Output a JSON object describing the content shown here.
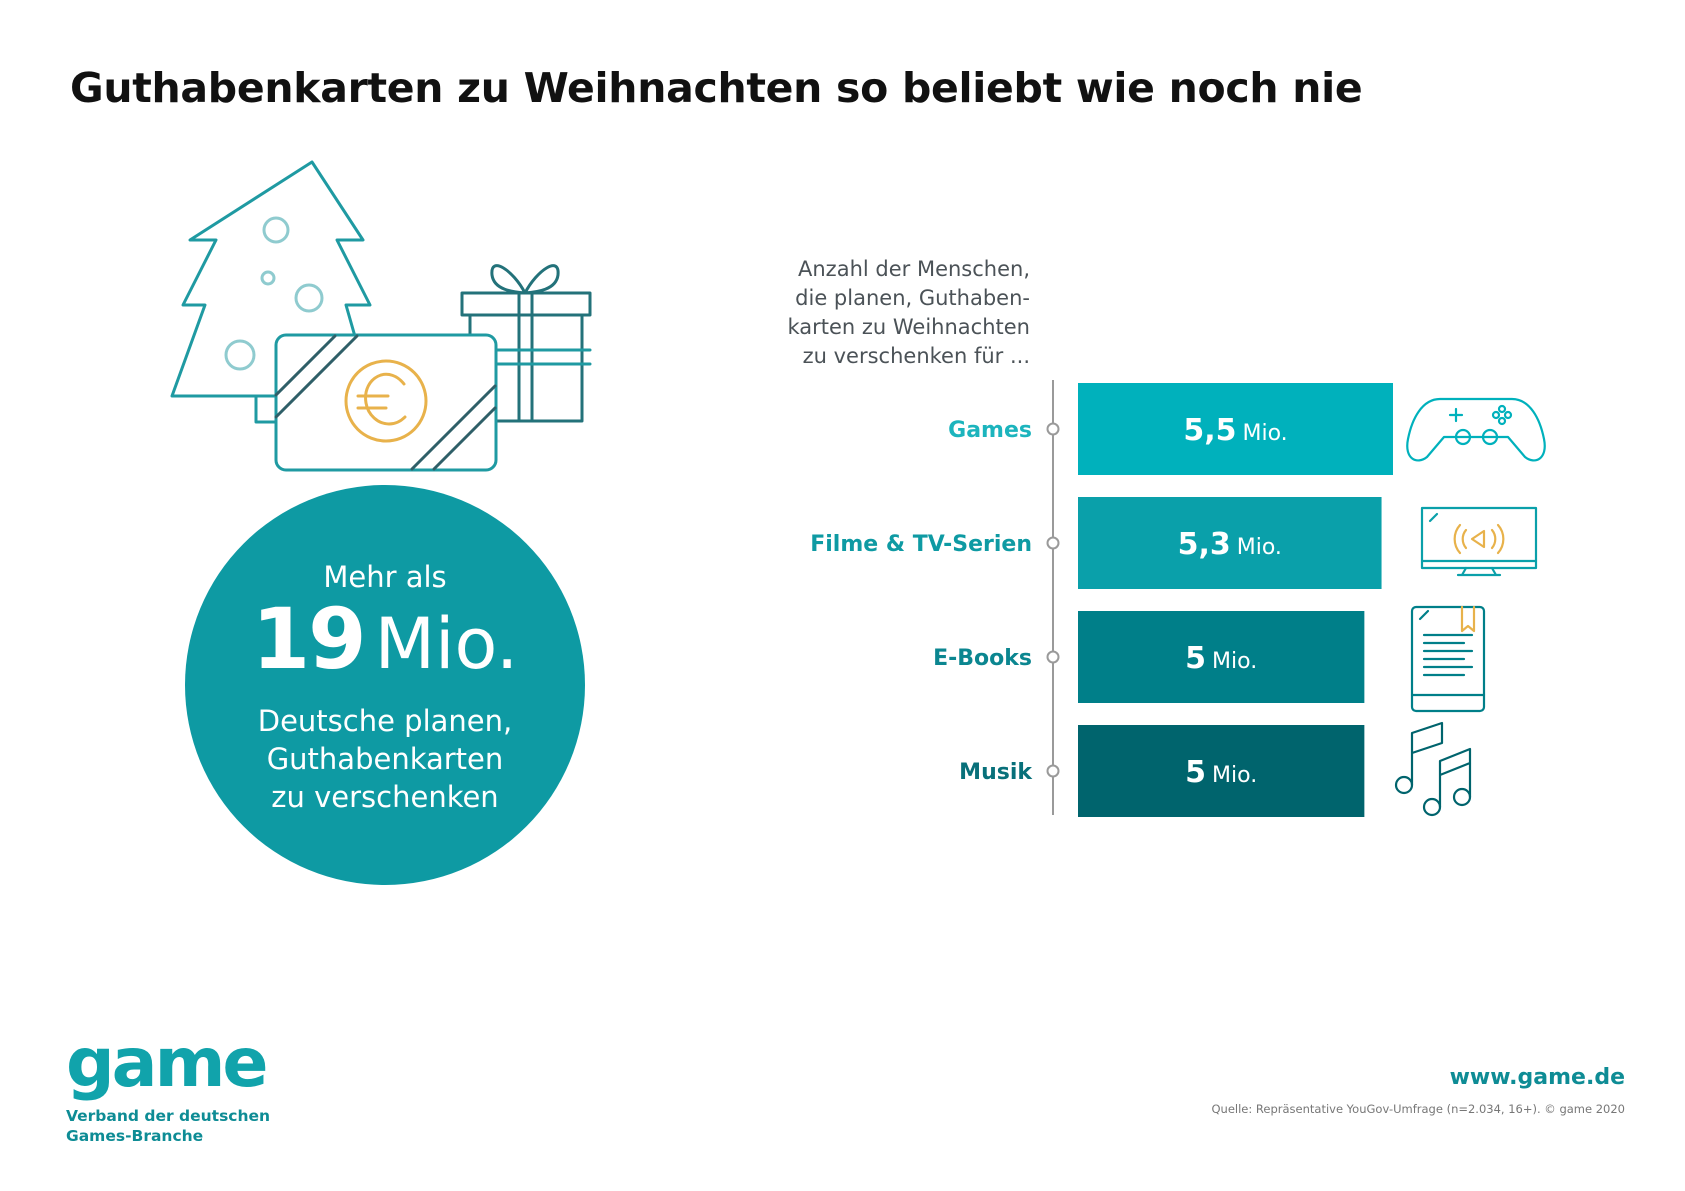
{
  "title": "Guthabenkarten zu Weihnachten so beliebt wie noch nie",
  "highlight": {
    "intro": "Mehr als",
    "number": "19",
    "unit": "Mio.",
    "line1": "Deutsche planen,",
    "line2": "Guthabenkarten",
    "line3": "zu verschenken"
  },
  "colors": {
    "games": "#00b1bc",
    "filme": "#0aa0aa",
    "ebooks": "#007f89",
    "musik": "#00646d",
    "circle": "#0e9aa3",
    "accent_gold": "#e8b24b"
  },
  "illustration_icons": [
    "christmas-tree-icon",
    "gift-card-icon",
    "euro-coin-icon",
    "gift-box-icon"
  ],
  "chart_data": {
    "type": "bar",
    "orientation": "horizontal",
    "intro": [
      "Anzahl der Menschen,",
      "die planen, Guthaben-",
      "karten zu Weihnachten",
      "zu verschenken für ..."
    ],
    "unit": "Mio.",
    "categories": [
      "Games",
      "Filme & TV-Serien",
      "E-Books",
      "Musik"
    ],
    "values": [
      5.5,
      5.3,
      5,
      5
    ],
    "value_labels": [
      "5,5",
      "5,3",
      "5",
      "5"
    ],
    "icons": [
      "gamepad-icon",
      "tv-icon",
      "ebook-icon",
      "music-note-icon"
    ],
    "bar_colors": [
      "#00b1bc",
      "#0aa0aa",
      "#007f89",
      "#00646d"
    ],
    "label_colors": [
      "#1cb4bd",
      "#0e9aa3",
      "#0b8690",
      "#08707a"
    ]
  },
  "footer": {
    "logo": "game",
    "logo_sub_line1": "Verband der deutschen",
    "logo_sub_line2": "Games-Branche",
    "url": "www.game.de",
    "source": "Quelle: Repräsentative YouGov-Umfrage (n=2.034, 16+). © game 2020"
  }
}
